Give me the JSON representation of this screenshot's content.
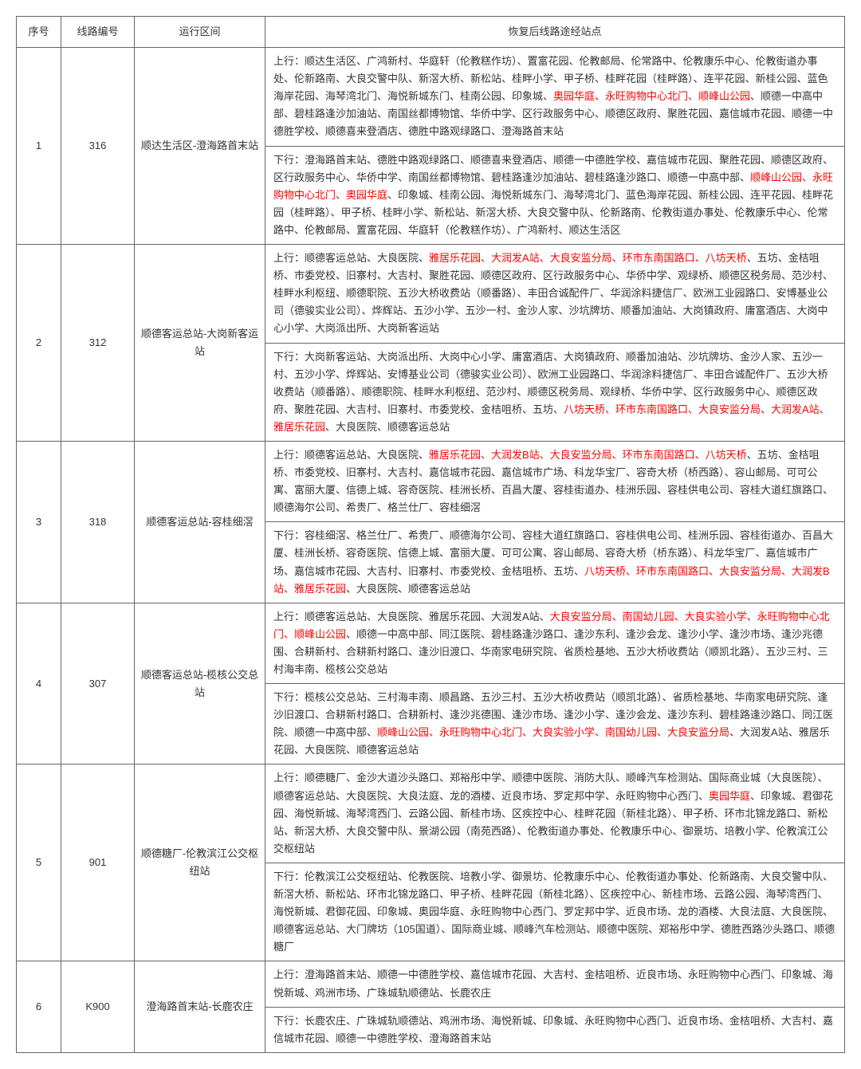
{
  "header": {
    "seq": "序号",
    "line": "线路编号",
    "route": "运行区间",
    "stations": "恢复后线路途经站点"
  },
  "rows": [
    {
      "seq": "1",
      "line": "316",
      "route": "顺达生活区-澄海路首末站",
      "up": [
        {
          "t": "上行：顺达生活区、广鸿新村、华庭轩（伦教糕作坊）、置富花园、伦教邮局、伦常路中、伦教康乐中心、伦教街道办事处、伦新路南、大良交警中队、新滘大桥、新松站、桂畔小学、甲子桥、桂畔花园（桂畔路）、连平花园、新桂公园、蓝色海岸花园、海琴湾北门、海悦新城东门、桂南公园、印象城、"
        },
        {
          "t": "奥园华庭、永旺购物中心北门、顺峰山公园",
          "h": true
        },
        {
          "t": "、顺德一中高中部、碧桂路逢沙加油站、南国丝都博物馆、华侨中学、区行政服务中心、顺德区政府、聚胜花园、嘉信城市花园、顺德一中德胜学校、顺德喜来登酒店、德胜中路观绿路口、澄海路首末站"
        }
      ],
      "down": [
        {
          "t": "下行：澄海路首末站、德胜中路观绿路口、顺德喜来登酒店、顺德一中德胜学校、嘉信城市花园、聚胜花园、顺德区政府、区行政服务中心、华侨中学、南国丝都博物馆、碧桂路逢沙加油站、碧桂路逢沙路口、顺德一中高中部、"
        },
        {
          "t": "顺峰山公园、永旺购物中心北门、奥园华庭",
          "h": true
        },
        {
          "t": "、印象城、桂南公园、海悦新城东门、海琴湾北门、蓝色海岸花园、新桂公园、连平花园、桂畔花园（桂畔路）、甲子桥、桂畔小学、新松站、新滘大桥、大良交警中队、伦新路南、伦教街道办事处、伦教康乐中心、伦常路中、伦教邮局、置富花园、华庭轩（伦教糕作坊）、广鸿新村、顺达生活区"
        }
      ]
    },
    {
      "seq": "2",
      "line": "312",
      "route": "顺德客运总站-大岗新客运站",
      "up": [
        {
          "t": "上行：顺德客运总站、大良医院、"
        },
        {
          "t": "雅居乐花园、大润发A站、大良安监分局、环市东南国路口、八坊天桥",
          "h": true
        },
        {
          "t": "、五坊、金桔咀桥、市委党校、旧寨村、大吉村、聚胜花园、顺德区政府、区行政服务中心、华侨中学、观绿桥、顺德区税务局、范沙村、桂畔水利枢纽、顺德职院、五沙大桥收费站（顺番路）、丰田合诚配件厂、华润涂料捷信厂、欧洲工业园路口、安博基业公司（德骏实业公司）、烨辉站、五沙小学、五沙一村、金沙人家、沙坑牌坊、顺番加油站、大岗镇政府、庸富酒店、大岗中心小学、大岗派出所、大岗新客运站"
        }
      ],
      "down": [
        {
          "t": "下行：大岗新客运站、大岗派出所、大岗中心小学、庸富酒店、大岗镇政府、顺番加油站、沙坑牌坊、金沙人家、五沙一村、五沙小学、烨辉站、安博基业公司（德骏实业公司）、欧洲工业园路口、华润涂料捷信厂、丰田合诚配件厂、五沙大桥收费站（顺番路）、顺德职院、桂畔水利枢纽、范沙村、顺德区税务局、观绿桥、华侨中学、区行政服务中心、顺德区政府、聚胜花园、大吉村、旧寨村、市委党校、金桔咀桥、五坊、"
        },
        {
          "t": "八坊天桥、环市东南国路口、大良安监分局、大润发A站、雅居乐花园",
          "h": true
        },
        {
          "t": "、大良医院、顺德客运总站"
        }
      ]
    },
    {
      "seq": "3",
      "line": "318",
      "route": "顺德客运总站-容桂细滘",
      "up": [
        {
          "t": "上行：顺德客运总站、大良医院、"
        },
        {
          "t": "雅居乐花园、大润发B站、大良安监分局、环市东南国路口、八坊天桥",
          "h": true
        },
        {
          "t": "、五坊、金桔咀桥、市委党校、旧寨村、大吉村、嘉信城市花园、嘉信城市广场、科龙华宝厂、容奇大桥（桥西路）、容山邮局、可可公寓、富丽大厦、信德上城、容奇医院、桂洲长桥、百昌大厦、容桂街道办、桂洲乐园、容桂供电公司、容桂大道红旗路口、顺德海尔公司、希贵厂、格兰仕厂、容桂细滘"
        }
      ],
      "down": [
        {
          "t": "下行：容桂细滘、格兰仕厂、希贵厂、顺德海尔公司、容桂大道红旗路口、容桂供电公司、桂洲乐园、容桂街道办、百昌大厦、桂洲长桥、容奇医院、信德上城、富丽大厦、可可公寓、容山邮局、容奇大桥（桥东路）、科龙华宝厂、嘉信城市广场、嘉信城市花园、大吉村、旧寨村、市委党校、金桔咀桥、五坊、"
        },
        {
          "t": "八坊天桥、环市东南国路口、大良安监分局、大润发B站、雅居乐花园",
          "h": true
        },
        {
          "t": "、大良医院、顺德客运总站"
        }
      ]
    },
    {
      "seq": "4",
      "line": "307",
      "route": "顺德客运总站-榄核公交总站",
      "up": [
        {
          "t": "上行：顺德客运总站、大良医院、雅居乐花园、大润发A站、"
        },
        {
          "t": "大良安监分局、南国幼儿园、大良实验小学、永旺购物中心北门、顺峰山公园",
          "h": true
        },
        {
          "t": "、顺德一中高中部、同江医院、碧桂路逢沙路口、逢沙东利、逢沙会龙、逢沙小学、逢沙市场、逢沙兆德围、合耕新村、合耕新村路口、逢沙旧渡口、华南家电研究院、省质检基地、五沙大桥收费站（顺凯北路）、五沙三村、三村海丰南、榄核公交总站"
        }
      ],
      "down": [
        {
          "t": "下行：榄核公交总站、三村海丰南、顺昌路、五沙三村、五沙大桥收费站（顺凯北路）、省质检基地、华南家电研究院、逢沙旧渡口、合耕新村路口、合耕新村、逢沙兆德围、逢沙市场、逢沙小学、逢沙会龙、逢沙东利、碧桂路逢沙路口、同江医院、顺德一中高中部、"
        },
        {
          "t": "顺峰山公园、永旺购物中心北门、大良实验小学、南国幼儿园、大良安监分局",
          "h": true
        },
        {
          "t": "、大润发A站、雅居乐花园、大良医院、顺德客运总站"
        }
      ]
    },
    {
      "seq": "5",
      "line": "901",
      "route": "顺德糖厂-伦教滨江公交枢纽站",
      "up": [
        {
          "t": "上行：顺德糖厂、金沙大道沙头路口、郑裕彤中学、顺德中医院、消防大队、顺峰汽车检测站、国际商业城（大良医院）、顺德客运总站、大良医院、大良法庭、龙的酒楼、近良市场、罗定邦中学、永旺购物中心西门、"
        },
        {
          "t": "奥园华庭",
          "h": true
        },
        {
          "t": "、印象城、君御花园、海悦新城、海琴湾西门、云路公园、新桂市场、区疾控中心、桂畔花园（新桂北路）、甲子桥、环市北锦龙路口、新松站、新滘大桥、大良交警中队、景湖公园（南苑西路）、伦教街道办事处、伦教康乐中心、御景坊、培教小学、伦教滨江公交枢纽站"
        }
      ],
      "down": [
        {
          "t": "下行：伦教滨江公交枢纽站、伦教医院、培教小学、御景坊、伦教康乐中心、伦教街道办事处、伦新路南、大良交警中队、新滘大桥、新松站、环市北锦龙路口、甲子桥、桂畔花园（新桂北路）、区疾控中心、新桂市场、云路公园、海琴湾西门、海悦新城、君御花园、印象城、奥园华庭、永旺购物中心西门、罗定邦中学、近良市场、龙的酒楼、大良法庭、大良医院、顺德客运总站、大门牌坊（105国道）、国际商业城、顺峰汽车检测站、顺德中医院、郑裕彤中学、德胜西路沙头路口、顺德糖厂"
        }
      ]
    },
    {
      "seq": "6",
      "line": "K900",
      "route": "澄海路首末站-长鹿农庄",
      "up": [
        {
          "t": "上行：澄海路首末站、顺德一中德胜学校、嘉信城市花园、大吉村、金桔咀桥、近良市场、永旺购物中心西门、印象城、海悦新城、鸡洲市场、广珠城轨顺德站、长鹿农庄"
        }
      ],
      "down": [
        {
          "t": "下行：长鹿农庄、广珠城轨顺德站、鸡洲市场、海悦新城、印象城、永旺购物中心西门、近良市场、金桔咀桥、大吉村、嘉信城市花园、顺德一中德胜学校、澄海路首末站"
        }
      ]
    }
  ]
}
